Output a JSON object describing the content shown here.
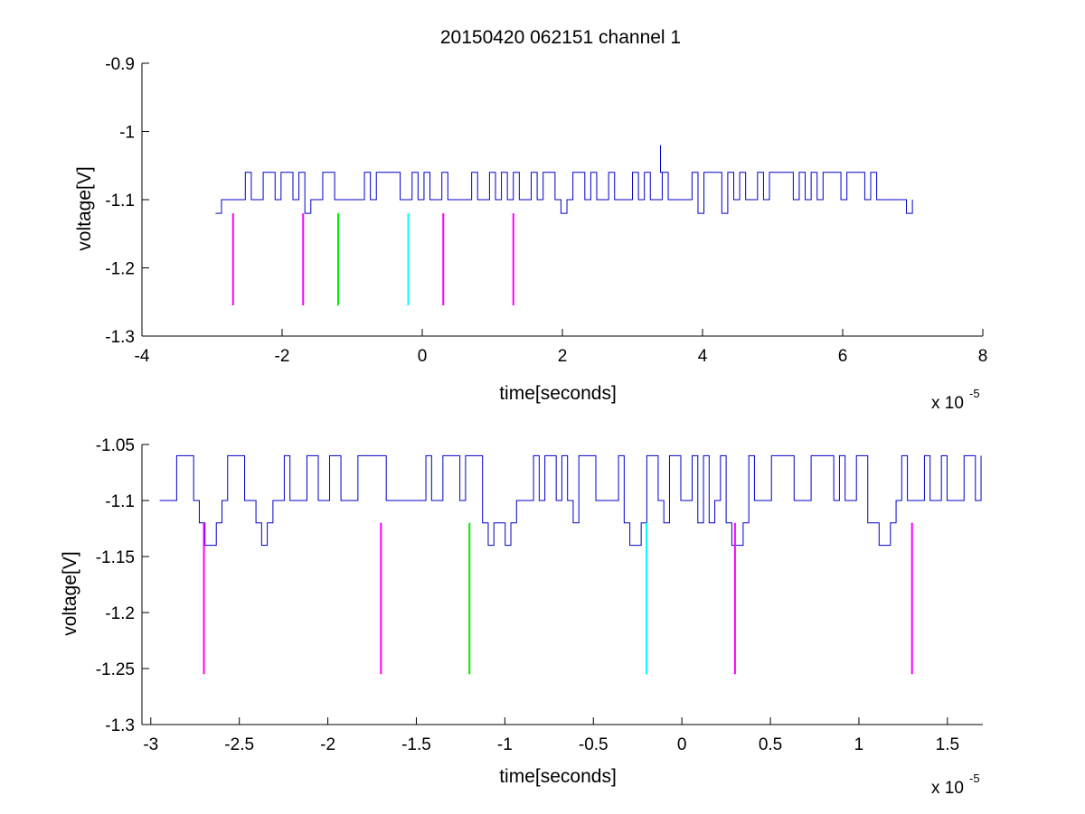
{
  "figure": {
    "title": "20150420 062151 channel 1"
  },
  "colors": {
    "background": "#ffffff",
    "signal": "#0000cc",
    "marker_magenta": "#ff00ff",
    "marker_green": "#00ee00",
    "marker_cyan": "#00ffff",
    "axes": "#000000"
  },
  "chart_data": [
    {
      "type": "line",
      "panel": "top",
      "xlabel": "time[seconds]",
      "ylabel": "voltage[V]",
      "x_exponent_label": {
        "base": "x 10",
        "exp": "-5"
      },
      "xlim": [
        -4e-05,
        8e-05
      ],
      "ylim": [
        -1.3,
        -0.9
      ],
      "xticks": [
        -4e-05,
        -2e-05,
        0,
        2e-05,
        4e-05,
        6e-05,
        8e-05
      ],
      "xtick_labels": [
        "-4",
        "-2",
        "0",
        "2",
        "4",
        "6",
        "8"
      ],
      "yticks": [
        -1.3,
        -1.2,
        -1.1,
        -1.0,
        -0.9
      ],
      "ytick_labels": [
        "-1.3",
        "-1.2",
        "-1.1",
        "-1",
        "-0.9"
      ],
      "grid": false,
      "series": [
        {
          "x_range": [
            -2.95e-05,
            7e-05
          ],
          "baseline": -1.1,
          "upper_level": -1.06,
          "lower_levels": [
            -1.12,
            -1.14
          ],
          "spike": {
            "x": 3.4e-05,
            "value": -1.02
          }
        }
      ],
      "markers": [
        {
          "x": -2.7e-05,
          "y_top": -1.12,
          "y_bottom": -1.255,
          "color": "magenta"
        },
        {
          "x": -1.7e-05,
          "y_top": -1.12,
          "y_bottom": -1.255,
          "color": "magenta"
        },
        {
          "x": -1.2e-05,
          "y_top": -1.12,
          "y_bottom": -1.255,
          "color": "green"
        },
        {
          "x": -2e-06,
          "y_top": -1.12,
          "y_bottom": -1.255,
          "color": "cyan"
        },
        {
          "x": 3e-06,
          "y_top": -1.12,
          "y_bottom": -1.255,
          "color": "magenta"
        },
        {
          "x": 1.3e-05,
          "y_top": -1.12,
          "y_bottom": -1.255,
          "color": "magenta"
        }
      ]
    },
    {
      "type": "line",
      "panel": "bottom",
      "xlabel": "time[seconds]",
      "ylabel": "voltage[V]",
      "x_exponent_label": {
        "base": "x 10",
        "exp": "-5"
      },
      "xlim": [
        -3.05e-05,
        1.7e-05
      ],
      "ylim": [
        -1.3,
        -1.05
      ],
      "xticks": [
        -3e-05,
        -2.5e-05,
        -2e-05,
        -1.5e-05,
        -1e-05,
        -5e-06,
        0,
        5e-06,
        1e-05,
        1.5e-05
      ],
      "xtick_labels": [
        "-3",
        "-2.5",
        "-2",
        "-1.5",
        "-1",
        "-0.5",
        "0",
        "0.5",
        "1",
        "1.5"
      ],
      "yticks": [
        -1.3,
        -1.25,
        -1.2,
        -1.15,
        -1.1,
        -1.05
      ],
      "ytick_labels": [
        "-1.3",
        "-1.25",
        "-1.2",
        "-1.15",
        "-1.1",
        "-1.05"
      ],
      "grid": false,
      "series": [
        {
          "x_range": [
            -2.95e-05,
            1.7e-05
          ],
          "baseline": -1.1,
          "upper_level": -1.06,
          "lower_levels": [
            -1.12,
            -1.14
          ],
          "dips": [
            -2.68e-05,
            -2.38e-05,
            -1.08e-05,
            -1.04e-05,
            -1e-05,
            -2.8e-06,
            2.7e-06,
            3e-06,
            1.09e-05,
            1.13e-05
          ]
        }
      ],
      "markers": [
        {
          "x": -2.7e-05,
          "y_top": -1.12,
          "y_bottom": -1.255,
          "color": "magenta"
        },
        {
          "x": -1.7e-05,
          "y_top": -1.12,
          "y_bottom": -1.255,
          "color": "magenta"
        },
        {
          "x": -1.2e-05,
          "y_top": -1.12,
          "y_bottom": -1.255,
          "color": "green"
        },
        {
          "x": -2e-06,
          "y_top": -1.12,
          "y_bottom": -1.255,
          "color": "cyan"
        },
        {
          "x": 3e-06,
          "y_top": -1.12,
          "y_bottom": -1.255,
          "color": "magenta"
        },
        {
          "x": 1.3e-05,
          "y_top": -1.12,
          "y_bottom": -1.255,
          "color": "magenta"
        }
      ]
    }
  ]
}
